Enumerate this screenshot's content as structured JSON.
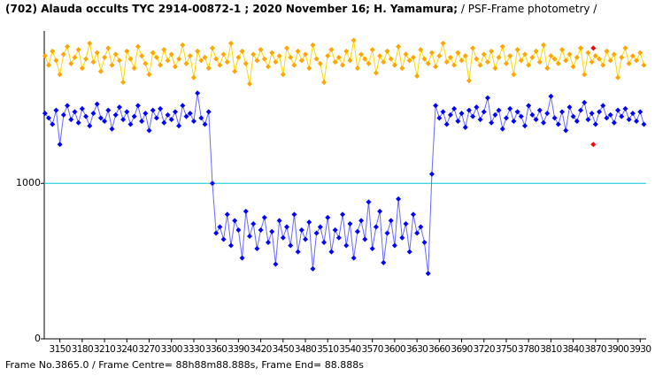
{
  "chart_data": {
    "type": "scatter-line",
    "title": "(702) Alauda  occults TYC 2914-00872-1 ; 2020 November 16; H. Yamamura;",
    "subtitle": " / PSF-Frame photometry /",
    "footer": "Frame No.3865.0 / Frame Centre= 88h88m88.888s,  Frame End= 88.888s",
    "xlim": [
      3129,
      3938
    ],
    "ylim": [
      0,
      1980
    ],
    "xticks": [
      3150,
      3180,
      3210,
      3240,
      3270,
      3300,
      3330,
      3360,
      3390,
      3420,
      3450,
      3480,
      3510,
      3540,
      3570,
      3600,
      3630,
      3660,
      3690,
      3720,
      3750,
      3780,
      3810,
      3840,
      3870,
      3900,
      3930
    ],
    "yticks": [
      0,
      1000
    ],
    "reference_line": 1000,
    "reference_color": "#00c8e0",
    "x": [
      3130,
      3135,
      3140,
      3145,
      3150,
      3155,
      3160,
      3165,
      3170,
      3175,
      3180,
      3185,
      3190,
      3195,
      3200,
      3205,
      3210,
      3215,
      3220,
      3225,
      3230,
      3235,
      3240,
      3245,
      3250,
      3255,
      3260,
      3265,
      3270,
      3275,
      3280,
      3285,
      3290,
      3295,
      3300,
      3305,
      3310,
      3315,
      3320,
      3325,
      3330,
      3335,
      3340,
      3345,
      3350,
      3355,
      3360,
      3365,
      3370,
      3375,
      3380,
      3385,
      3390,
      3395,
      3400,
      3405,
      3410,
      3415,
      3420,
      3425,
      3430,
      3435,
      3440,
      3445,
      3450,
      3455,
      3460,
      3465,
      3470,
      3475,
      3480,
      3485,
      3490,
      3495,
      3500,
      3505,
      3510,
      3515,
      3520,
      3525,
      3530,
      3535,
      3540,
      3545,
      3550,
      3555,
      3560,
      3565,
      3570,
      3575,
      3580,
      3585,
      3590,
      3595,
      3600,
      3605,
      3610,
      3615,
      3620,
      3625,
      3630,
      3635,
      3640,
      3645,
      3650,
      3655,
      3660,
      3665,
      3670,
      3675,
      3680,
      3685,
      3690,
      3695,
      3700,
      3705,
      3710,
      3715,
      3720,
      3725,
      3730,
      3735,
      3740,
      3745,
      3750,
      3755,
      3760,
      3765,
      3770,
      3775,
      3780,
      3785,
      3790,
      3795,
      3800,
      3805,
      3810,
      3815,
      3820,
      3825,
      3830,
      3835,
      3840,
      3845,
      3850,
      3855,
      3860,
      3865,
      3870,
      3875,
      3880,
      3885,
      3890,
      3895,
      3900,
      3905,
      3910,
      3915,
      3920,
      3925,
      3930,
      3935
    ],
    "series": [
      {
        "color": "#ffa500",
        "line_color": "#ffd700",
        "values": [
          1820,
          1760,
          1850,
          1790,
          1700,
          1830,
          1880,
          1770,
          1810,
          1860,
          1740,
          1800,
          1900,
          1780,
          1840,
          1720,
          1810,
          1870,
          1760,
          1830,
          1790,
          1650,
          1850,
          1800,
          1740,
          1880,
          1820,
          1770,
          1700,
          1840,
          1810,
          1760,
          1860,
          1790,
          1830,
          1750,
          1800,
          1890,
          1770,
          1820,
          1680,
          1850,
          1790,
          1810,
          1740,
          1870,
          1800,
          1760,
          1830,
          1780,
          1900,
          1720,
          1810,
          1850,
          1770,
          1640,
          1830,
          1790,
          1860,
          1800,
          1750,
          1840,
          1780,
          1820,
          1700,
          1870,
          1810,
          1760,
          1850,
          1790,
          1830,
          1740,
          1890,
          1800,
          1770,
          1650,
          1820,
          1860,
          1780,
          1810,
          1760,
          1850,
          1790,
          1920,
          1740,
          1830,
          1800,
          1770,
          1860,
          1710,
          1820,
          1780,
          1850,
          1800,
          1760,
          1880,
          1740,
          1830,
          1790,
          1810,
          1690,
          1860,
          1800,
          1770,
          1840,
          1750,
          1820,
          1900,
          1780,
          1810,
          1760,
          1840,
          1790,
          1820,
          1660,
          1870,
          1800,
          1760,
          1830,
          1780,
          1850,
          1740,
          1810,
          1880,
          1770,
          1820,
          1700,
          1860,
          1790,
          1830,
          1760,
          1810,
          1850,
          1780,
          1890,
          1740,
          1820,
          1800,
          1770,
          1860,
          1790,
          1830,
          1750,
          1810,
          1870,
          1700,
          1840,
          1780,
          1820,
          1800,
          1760,
          1850,
          1790,
          1830,
          1680,
          1810,
          1870,
          1770,
          1820,
          1790,
          1840,
          1760
        ]
      },
      {
        "color": "#0000ff",
        "line_color": "#6868ff",
        "values": [
          1450,
          1420,
          1380,
          1470,
          1250,
          1440,
          1500,
          1410,
          1460,
          1390,
          1480,
          1430,
          1370,
          1450,
          1510,
          1420,
          1400,
          1470,
          1350,
          1440,
          1490,
          1410,
          1460,
          1380,
          1430,
          1500,
          1400,
          1450,
          1340,
          1470,
          1420,
          1480,
          1390,
          1440,
          1410,
          1460,
          1370,
          1500,
          1430,
          1450,
          1400,
          1580,
          1420,
          1380,
          1460,
          1000,
          680,
          720,
          640,
          800,
          600,
          760,
          700,
          520,
          820,
          660,
          740,
          580,
          700,
          780,
          620,
          690,
          480,
          760,
          650,
          720,
          600,
          800,
          560,
          700,
          640,
          750,
          450,
          680,
          720,
          620,
          780,
          560,
          700,
          650,
          800,
          600,
          740,
          520,
          690,
          760,
          640,
          880,
          580,
          720,
          820,
          490,
          680,
          760,
          600,
          900,
          650,
          740,
          560,
          800,
          680,
          720,
          620,
          420,
          1060,
          1500,
          1420,
          1460,
          1380,
          1440,
          1480,
          1400,
          1450,
          1360,
          1470,
          1430,
          1490,
          1410,
          1460,
          1550,
          1390,
          1440,
          1470,
          1350,
          1420,
          1480,
          1400,
          1460,
          1430,
          1370,
          1500,
          1440,
          1410,
          1470,
          1390,
          1450,
          1560,
          1420,
          1380,
          1460,
          1340,
          1490,
          1430,
          1400,
          1470,
          1520,
          1410,
          1450,
          1380,
          1460,
          1500,
          1420,
          1440,
          1390,
          1470,
          1430,
          1480,
          1410,
          1450,
          1400,
          1460,
          1380
        ]
      }
    ],
    "highlight": {
      "x": 3867,
      "values": [
        1870,
        1250
      ],
      "color": "#ff0000"
    }
  }
}
